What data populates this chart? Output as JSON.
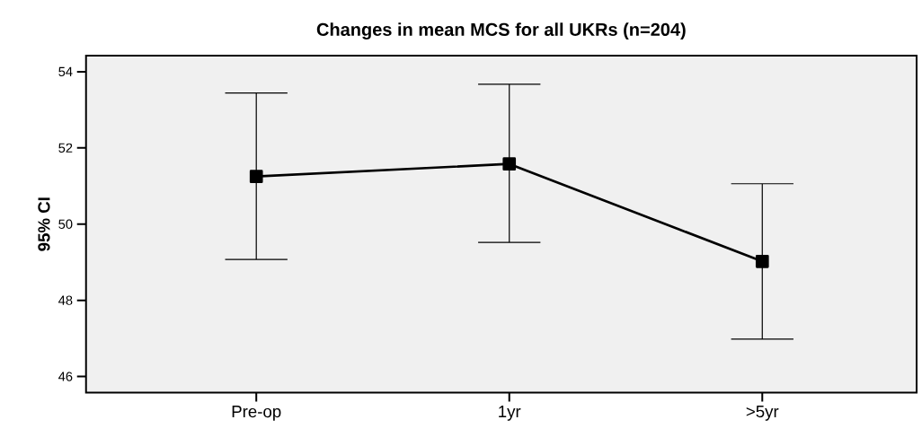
{
  "chart_data": {
    "type": "line",
    "title": "Changes in mean MCS for all UKRs (n=204)",
    "ylabel": "95% CI",
    "categories": [
      "Pre-op",
      "1yr",
      ">5yr"
    ],
    "values": [
      51.25,
      51.58,
      49.02
    ],
    "errors": [
      [
        49.07,
        53.44
      ],
      [
        49.52,
        53.67
      ],
      [
        46.98,
        51.06
      ]
    ],
    "color": "#000000",
    "ylim": [
      45.58,
      54.42
    ],
    "yticks": [
      46,
      48,
      50,
      52,
      54
    ],
    "marker": "square",
    "line_style": "solid",
    "grid": false
  }
}
